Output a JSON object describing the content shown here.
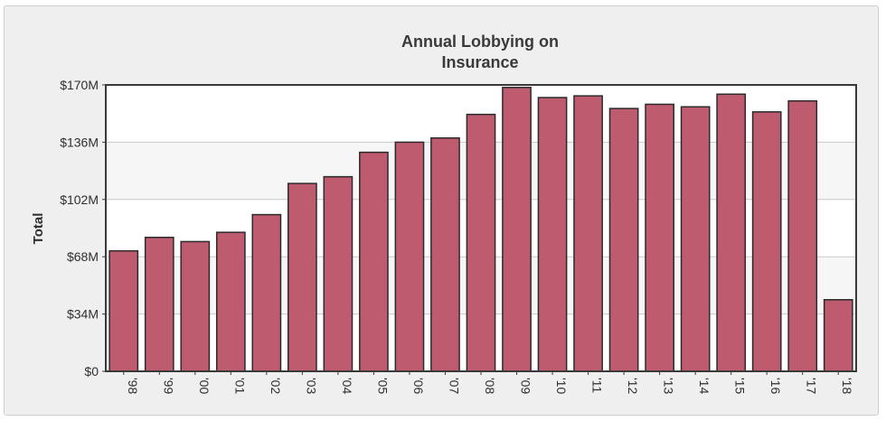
{
  "colors": {
    "bar": "#be5b6e",
    "bar_stroke": "#2b2b2b",
    "plot_background": "#ffffff",
    "frame_background": "#efefef",
    "grid": "#c8c8c8",
    "text": "#333333"
  },
  "chart_data": {
    "type": "bar",
    "title": [
      "Annual Lobbying on",
      "Insurance"
    ],
    "xlabel": "",
    "ylabel": "Total",
    "ylim": [
      0,
      170
    ],
    "y_unit": "$M",
    "yticks": [
      0,
      34,
      68,
      102,
      136,
      170
    ],
    "ytick_labels": [
      "$0",
      "$34M",
      "$68M",
      "$102M",
      "$136M",
      "$170M"
    ],
    "categories": [
      "'98",
      "'99",
      "'00",
      "'01",
      "'02",
      "'03",
      "'04",
      "'05",
      "'06",
      "'07",
      "'08",
      "'09",
      "'10",
      "'11",
      "'12",
      "'13",
      "'14",
      "'15",
      "'16",
      "'17",
      "'18"
    ],
    "values": [
      71.5,
      79.5,
      77,
      82.5,
      93,
      111.5,
      115.5,
      130,
      136,
      138.5,
      152.5,
      168.5,
      162.5,
      163.5,
      156,
      158.5,
      157,
      164.5,
      154,
      160.5,
      42.5
    ],
    "grid": true,
    "legend": "none"
  }
}
